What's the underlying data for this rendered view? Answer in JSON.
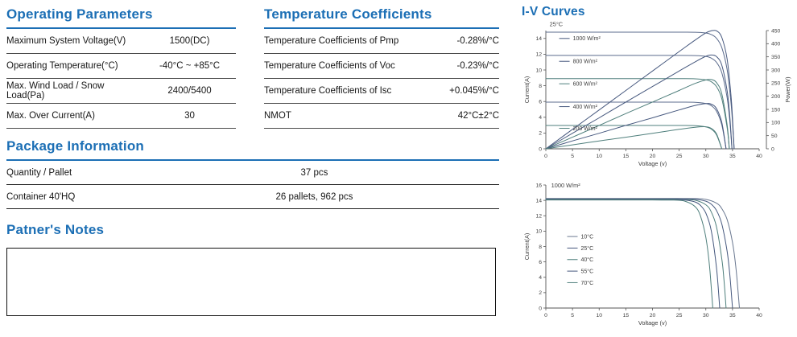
{
  "panels": {
    "operating_parameters": {
      "title": "Operating Parameters",
      "rows": [
        {
          "label": "Maximum System Voltage(V)",
          "value": "1500(DC)"
        },
        {
          "label": "Operating Temperature(°C)",
          "value": "-40°C ~ +85°C"
        },
        {
          "label": "Max. Wind Load / Snow Load(Pa)",
          "value": "2400/5400"
        },
        {
          "label": "Max. Over Current(A)",
          "value": "30"
        }
      ]
    },
    "temperature_coefficients": {
      "title": "Temperature Coefficients",
      "rows": [
        {
          "label": "Temperature Coefficients of Pmp",
          "value": "-0.28%/°C"
        },
        {
          "label": "Temperature Coefficients of Voc",
          "value": "-0.23%/°C"
        },
        {
          "label": "Temperature Coefficients of Isc",
          "value": "+0.045%/°C"
        },
        {
          "label": "NMOT",
          "value": "42°C±2°C"
        }
      ]
    },
    "package_information": {
      "title": "Package Information",
      "rows": [
        {
          "label": "Quantity / Pallet",
          "value": "37 pcs"
        },
        {
          "label": "Container 40'HQ",
          "value": "26 pallets, 962 pcs"
        }
      ]
    },
    "partners_notes": {
      "title": "Patner's Notes"
    },
    "iv_curves": {
      "title": "I-V  Curves"
    }
  },
  "colors": {
    "accent_blue": "#1c6fb5",
    "table_line": "#4a4a4a",
    "notes_border": "#111111",
    "axis": "#555555",
    "curve_navy": "#46587e",
    "curve_slate": "#5b6b8c",
    "curve_teal": "#4f7f7c"
  },
  "chart_data": [
    {
      "id": "iv_pv_25c",
      "type": "line",
      "title": "25°C",
      "title_at": [
        0.7,
        15.55
      ],
      "xlabel": "Voltage (v)",
      "ylabel": "Current(A)",
      "y2label": "Power(W)",
      "xlim": [
        0,
        40
      ],
      "ylim": [
        0,
        15
      ],
      "y2lim": [
        0,
        450
      ],
      "xticks": [
        0,
        5,
        10,
        15,
        20,
        25,
        30,
        35,
        40
      ],
      "yticks": [
        0,
        2,
        4,
        6,
        8,
        10,
        12,
        14
      ],
      "y2ticks": [
        0,
        50,
        100,
        150,
        200,
        250,
        300,
        350,
        400,
        450
      ],
      "grid": false,
      "legend_position": "inside-left",
      "legend": [
        {
          "label": "1000 W/m²",
          "color": "#46587e",
          "at": [
            2.5,
            14.0
          ]
        },
        {
          "label": "800 W/m²",
          "color": "#46587e",
          "at": [
            2.5,
            11.1
          ]
        },
        {
          "label": "600 W/m²",
          "color": "#4f7f7c",
          "at": [
            2.5,
            8.25
          ]
        },
        {
          "label": "400 W/m²",
          "color": "#46587e",
          "at": [
            2.5,
            5.35
          ]
        },
        {
          "label": "200 W/m²",
          "color": "#4f7f7c",
          "at": [
            2.5,
            2.6
          ]
        }
      ],
      "series": [
        {
          "name": "I-V 1000 W/m²",
          "axis": "y",
          "isc_a": 14.8,
          "voc_v": 35.3,
          "color": "#5b6b8c",
          "points": [
            [
              0,
              14.8
            ],
            [
              10,
              14.8
            ],
            [
              20,
              14.8
            ],
            [
              25,
              14.8
            ],
            [
              28,
              14.79
            ],
            [
              30,
              14.69
            ],
            [
              31,
              14.5
            ],
            [
              32,
              14.02
            ],
            [
              33,
              12.84
            ],
            [
              34,
              9.99
            ],
            [
              34.7,
              5.95
            ],
            [
              35,
              3.34
            ],
            [
              35.3,
              0
            ]
          ]
        },
        {
          "name": "I-V 800 W/m²",
          "axis": "y",
          "isc_a": 11.85,
          "voc_v": 34.9,
          "color": "#5b6b8c",
          "points": [
            [
              0,
              11.85
            ],
            [
              10,
              11.85
            ],
            [
              20,
              11.85
            ],
            [
              25,
              11.85
            ],
            [
              28,
              11.83
            ],
            [
              30,
              11.72
            ],
            [
              31,
              11.51
            ],
            [
              32,
              10.97
            ],
            [
              33,
              9.64
            ],
            [
              34,
              6.44
            ],
            [
              34.5,
              3.47
            ],
            [
              34.9,
              0
            ]
          ]
        },
        {
          "name": "I-V 600 W/m²",
          "axis": "y",
          "isc_a": 8.9,
          "voc_v": 34.4,
          "color": "#4f7f7c",
          "points": [
            [
              0,
              8.9
            ],
            [
              10,
              8.9
            ],
            [
              20,
              8.9
            ],
            [
              25,
              8.9
            ],
            [
              28,
              8.88
            ],
            [
              30,
              8.75
            ],
            [
              31,
              8.51
            ],
            [
              32,
              7.89
            ],
            [
              33,
              6.34
            ],
            [
              34,
              2.63
            ],
            [
              34.4,
              0
            ]
          ]
        },
        {
          "name": "I-V 400 W/m²",
          "axis": "y",
          "isc_a": 5.92,
          "voc_v": 33.8,
          "color": "#5b6b8c",
          "points": [
            [
              0,
              5.92
            ],
            [
              10,
              5.92
            ],
            [
              20,
              5.92
            ],
            [
              25,
              5.92
            ],
            [
              28,
              5.9
            ],
            [
              30,
              5.75
            ],
            [
              31,
              5.48
            ],
            [
              32,
              4.78
            ],
            [
              33,
              3.04
            ],
            [
              33.8,
              0
            ]
          ]
        },
        {
          "name": "I-V 200 W/m²",
          "axis": "y",
          "isc_a": 2.96,
          "voc_v": 33.0,
          "color": "#4f7f7c",
          "points": [
            [
              0,
              2.96
            ],
            [
              10,
              2.96
            ],
            [
              20,
              2.96
            ],
            [
              25,
              2.96
            ],
            [
              28,
              2.94
            ],
            [
              30,
              2.79
            ],
            [
              31,
              2.51
            ],
            [
              32,
              1.78
            ],
            [
              33,
              0
            ]
          ]
        },
        {
          "name": "P-V 1000 W/m²",
          "axis": "y2",
          "pmax_w": 449,
          "color": "#46587e",
          "points": [
            [
              0,
              0
            ],
            [
              5,
              74
            ],
            [
              10,
              148
            ],
            [
              15,
              222
            ],
            [
              20,
              296
            ],
            [
              25,
              370
            ],
            [
              28,
              414
            ],
            [
              30,
              441
            ],
            [
              31,
              449
            ],
            [
              32,
              449
            ],
            [
              33,
              424
            ],
            [
              34,
              340
            ],
            [
              34.7,
              206
            ],
            [
              35,
              117
            ],
            [
              35.3,
              0
            ]
          ]
        },
        {
          "name": "P-V 800 W/m²",
          "axis": "y2",
          "pmax_w": 357,
          "color": "#46587e",
          "points": [
            [
              0,
              0
            ],
            [
              5,
              59
            ],
            [
              10,
              118
            ],
            [
              15,
              178
            ],
            [
              20,
              237
            ],
            [
              25,
              296
            ],
            [
              28,
              331
            ],
            [
              30,
              352
            ],
            [
              31,
              357
            ],
            [
              32,
              351
            ],
            [
              33,
              318
            ],
            [
              34,
              219
            ],
            [
              34.5,
              120
            ],
            [
              34.9,
              0
            ]
          ]
        },
        {
          "name": "P-V 600 W/m²",
          "axis": "y2",
          "pmax_w": 264,
          "color": "#4f7f7c",
          "points": [
            [
              0,
              0
            ],
            [
              5,
              44
            ],
            [
              10,
              89
            ],
            [
              15,
              134
            ],
            [
              20,
              178
            ],
            [
              25,
              222
            ],
            [
              28,
              249
            ],
            [
              30,
              262
            ],
            [
              31,
              264
            ],
            [
              32,
              252
            ],
            [
              33,
              209
            ],
            [
              34,
              89
            ],
            [
              34.4,
              0
            ]
          ]
        },
        {
          "name": "P-V 400 W/m²",
          "axis": "y2",
          "pmax_w": 173,
          "color": "#46587e",
          "points": [
            [
              0,
              0
            ],
            [
              5,
              30
            ],
            [
              10,
              59
            ],
            [
              15,
              89
            ],
            [
              20,
              118
            ],
            [
              25,
              148
            ],
            [
              28,
              165
            ],
            [
              30,
              172
            ],
            [
              31,
              170
            ],
            [
              32,
              153
            ],
            [
              33,
              100
            ],
            [
              33.8,
              0
            ]
          ]
        },
        {
          "name": "P-V 200 W/m²",
          "axis": "y2",
          "pmax_w": 84,
          "color": "#4f7f7c",
          "points": [
            [
              0,
              0
            ],
            [
              5,
              15
            ],
            [
              10,
              30
            ],
            [
              15,
              44
            ],
            [
              20,
              59
            ],
            [
              25,
              74
            ],
            [
              28,
              82
            ],
            [
              30,
              84
            ],
            [
              31,
              78
            ],
            [
              32,
              57
            ],
            [
              33,
              0
            ]
          ]
        }
      ]
    },
    {
      "id": "iv_temperature_1000wm2",
      "type": "line",
      "title": "1000 W/m²",
      "title_at": [
        1.0,
        15.7
      ],
      "xlabel": "Voltage (v)",
      "ylabel": "Current(A)",
      "xlim": [
        0,
        40
      ],
      "ylim": [
        0,
        16
      ],
      "xticks": [
        0,
        5,
        10,
        15,
        20,
        25,
        30,
        35,
        40
      ],
      "yticks": [
        0,
        2,
        4,
        6,
        8,
        10,
        12,
        14,
        16
      ],
      "grid": false,
      "legend_position": "inside-left",
      "legend": [
        {
          "label": "10°C",
          "color": "#6a7890",
          "at": [
            4,
            9.3
          ]
        },
        {
          "label": "25°C",
          "color": "#46587e",
          "at": [
            4,
            7.8
          ]
        },
        {
          "label": "40°C",
          "color": "#4f7f7c",
          "at": [
            4,
            6.3
          ]
        },
        {
          "label": "55°C",
          "color": "#46587e",
          "at": [
            4,
            4.8
          ]
        },
        {
          "label": "70°C",
          "color": "#4f7f7c",
          "at": [
            4,
            3.3
          ]
        }
      ],
      "series": [
        {
          "name": "10°C",
          "axis": "y",
          "isc_a": 14.25,
          "voc_v": 36.3,
          "color": "#6a7890",
          "points": [
            [
              0,
              14.25
            ],
            [
              10,
              14.25
            ],
            [
              20,
              14.25
            ],
            [
              25,
              14.25
            ],
            [
              28,
              14.23
            ],
            [
              30,
              14.13
            ],
            [
              32,
              13.64
            ],
            [
              33,
              12.93
            ],
            [
              34,
              11.48
            ],
            [
              35,
              8.52
            ],
            [
              35.7,
              4.85
            ],
            [
              36.3,
              0
            ]
          ]
        },
        {
          "name": "25°C",
          "axis": "y",
          "isc_a": 14.2,
          "voc_v": 35.0,
          "color": "#46587e",
          "points": [
            [
              0,
              14.2
            ],
            [
              10,
              14.2
            ],
            [
              20,
              14.2
            ],
            [
              25,
              14.2
            ],
            [
              28,
              14.15
            ],
            [
              30,
              13.9
            ],
            [
              31,
              13.52
            ],
            [
              32,
              12.69
            ],
            [
              33,
              10.93
            ],
            [
              34,
              7.32
            ],
            [
              34.5,
              4.29
            ],
            [
              35,
              0
            ]
          ]
        },
        {
          "name": "40°C",
          "axis": "y",
          "isc_a": 14.15,
          "voc_v": 33.8,
          "color": "#4f7f7c",
          "points": [
            [
              0,
              14.15
            ],
            [
              10,
              14.15
            ],
            [
              20,
              14.15
            ],
            [
              24,
              14.13
            ],
            [
              26,
              14.08
            ],
            [
              28,
              14.02
            ],
            [
              30,
              13.43
            ],
            [
              31,
              12.52
            ],
            [
              32,
              10.55
            ],
            [
              33,
              6.38
            ],
            [
              33.4,
              3.64
            ],
            [
              33.8,
              0
            ]
          ]
        },
        {
          "name": "55°C",
          "axis": "y",
          "isc_a": 14.1,
          "voc_v": 32.6,
          "color": "#46587e",
          "points": [
            [
              0,
              14.1
            ],
            [
              10,
              14.1
            ],
            [
              20,
              14.1
            ],
            [
              24,
              14.08
            ],
            [
              26,
              14.05
            ],
            [
              28,
              13.79
            ],
            [
              29,
              13.34
            ],
            [
              30,
              12.34
            ],
            [
              31,
              10.1
            ],
            [
              32,
              5.24
            ],
            [
              32.6,
              0
            ]
          ]
        },
        {
          "name": "70°C",
          "axis": "y",
          "isc_a": 14.05,
          "voc_v": 31.3,
          "color": "#4f7f7c",
          "points": [
            [
              0,
              14.05
            ],
            [
              10,
              14.05
            ],
            [
              20,
              14.05
            ],
            [
              22,
              14.04
            ],
            [
              24,
              14.03
            ],
            [
              26,
              13.91
            ],
            [
              28,
              13.18
            ],
            [
              29,
              11.96
            ],
            [
              30,
              9.18
            ],
            [
              30.7,
              5.4
            ],
            [
              31.3,
              0
            ]
          ]
        }
      ]
    }
  ]
}
